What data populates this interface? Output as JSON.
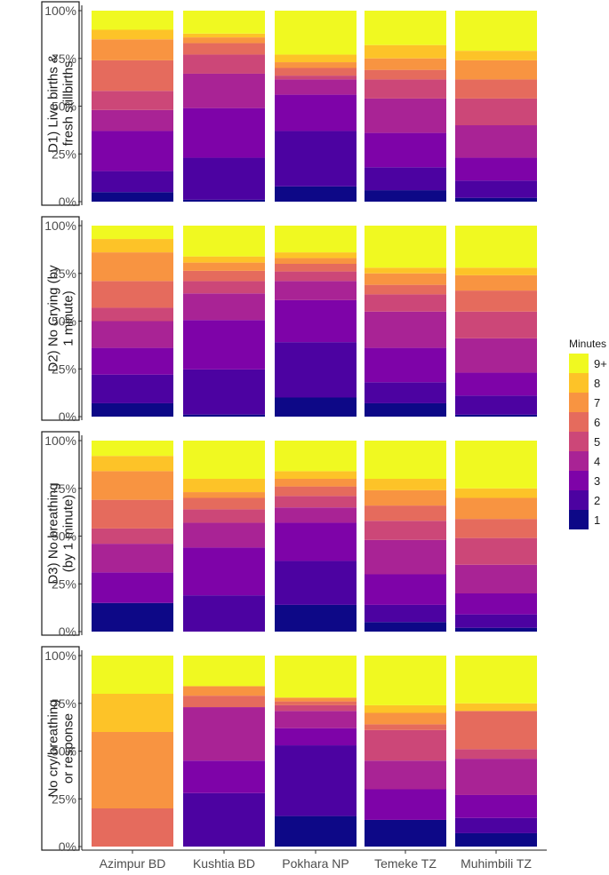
{
  "chart_data": {
    "type": "bar",
    "stacked": true,
    "categories": [
      "Azimpur BD",
      "Kushtia BD",
      "Pokhara NP",
      "Temeke TZ",
      "Muhimbili TZ"
    ],
    "ylim": [
      0,
      100
    ],
    "yticks": [
      "0%",
      "25%",
      "50%",
      "75%",
      "100%"
    ],
    "legend": {
      "title": "Minutes",
      "position": "right",
      "order_top_to_bottom": [
        "9+",
        "8",
        "7",
        "6",
        "5",
        "4",
        "3",
        "2",
        "1"
      ]
    },
    "series_names": [
      "1",
      "2",
      "3",
      "4",
      "5",
      "6",
      "7",
      "8",
      "9+"
    ],
    "colors": {
      "1": "#0d0887",
      "2": "#4c02a1",
      "3": "#7e03a8",
      "4": "#a92395",
      "5": "#cc4778",
      "6": "#e56b5d",
      "7": "#f89441",
      "8": "#fdc328",
      "9+": "#f0f921"
    },
    "panels": [
      {
        "label": "D1) Live births & fresh stillbirths",
        "label_lines": [
          "D1) Live births &",
          "fresh stillbirths"
        ],
        "stacks": [
          [
            5,
            11,
            21,
            11,
            10,
            16,
            11,
            5,
            10
          ],
          [
            1,
            22,
            26,
            18,
            10,
            6,
            3,
            2,
            12
          ],
          [
            8,
            29,
            19,
            8,
            2,
            4,
            3,
            4,
            23
          ],
          [
            6,
            12,
            18,
            18,
            10,
            5,
            6,
            7,
            18
          ],
          [
            2,
            9,
            12,
            17,
            14,
            10,
            10,
            5,
            21
          ]
        ]
      },
      {
        "label": "D2) No Crying (by 1 minute)",
        "label_lines": [
          "D2) No Crying (by",
          "1 minute)"
        ],
        "stacks": [
          [
            7,
            15,
            14,
            14,
            7,
            14,
            15,
            7,
            7
          ],
          [
            1,
            22,
            24,
            13,
            6,
            5,
            4,
            3,
            15
          ],
          [
            10,
            29,
            22,
            10,
            5,
            4,
            3,
            3,
            14
          ],
          [
            7,
            11,
            18,
            19,
            9,
            5,
            6,
            3,
            22
          ],
          [
            1,
            10,
            12,
            18,
            14,
            11,
            8,
            4,
            22
          ]
        ]
      },
      {
        "label": "D3) No breathing (by 1 minute)",
        "label_lines": [
          "D3) No breathing",
          "(by 1 minute)"
        ],
        "stacks": [
          [
            15,
            0,
            16,
            15,
            8,
            15,
            15,
            8,
            8
          ],
          [
            0,
            19,
            25,
            13,
            7,
            6,
            3,
            7,
            20
          ],
          [
            14,
            23,
            20,
            8,
            6,
            5,
            4,
            4,
            16
          ],
          [
            5,
            9,
            16,
            18,
            10,
            8,
            8,
            6,
            20
          ],
          [
            2,
            7,
            11,
            15,
            14,
            10,
            11,
            5,
            25
          ]
        ]
      },
      {
        "label": "No cry/breathing or response",
        "label_lines": [
          "No cry/breathing",
          "or response"
        ],
        "stacks": [
          [
            0,
            0,
            0,
            0,
            0,
            20,
            40,
            20,
            20
          ],
          [
            0,
            28,
            17,
            28,
            0,
            6,
            5,
            0,
            16
          ],
          [
            16,
            37,
            9,
            9,
            3,
            2,
            2,
            0,
            22
          ],
          [
            14,
            0,
            16,
            15,
            16,
            3,
            6,
            4,
            26
          ],
          [
            7,
            8,
            12,
            19,
            5,
            20,
            0,
            4,
            25
          ]
        ]
      }
    ]
  }
}
